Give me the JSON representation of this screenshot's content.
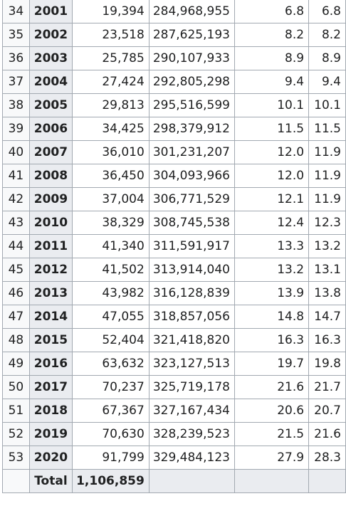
{
  "table": {
    "rows": [
      {
        "index": "34",
        "year": "2001",
        "deaths": "19,394",
        "population": "284,968,955",
        "rate": "6.8",
        "rate2": "6.8"
      },
      {
        "index": "35",
        "year": "2002",
        "deaths": "23,518",
        "population": "287,625,193",
        "rate": "8.2",
        "rate2": "8.2"
      },
      {
        "index": "36",
        "year": "2003",
        "deaths": "25,785",
        "population": "290,107,933",
        "rate": "8.9",
        "rate2": "8.9"
      },
      {
        "index": "37",
        "year": "2004",
        "deaths": "27,424",
        "population": "292,805,298",
        "rate": "9.4",
        "rate2": "9.4"
      },
      {
        "index": "38",
        "year": "2005",
        "deaths": "29,813",
        "population": "295,516,599",
        "rate": "10.1",
        "rate2": "10.1"
      },
      {
        "index": "39",
        "year": "2006",
        "deaths": "34,425",
        "population": "298,379,912",
        "rate": "11.5",
        "rate2": "11.5"
      },
      {
        "index": "40",
        "year": "2007",
        "deaths": "36,010",
        "population": "301,231,207",
        "rate": "12.0",
        "rate2": "11.9"
      },
      {
        "index": "41",
        "year": "2008",
        "deaths": "36,450",
        "population": "304,093,966",
        "rate": "12.0",
        "rate2": "11.9"
      },
      {
        "index": "42",
        "year": "2009",
        "deaths": "37,004",
        "population": "306,771,529",
        "rate": "12.1",
        "rate2": "11.9"
      },
      {
        "index": "43",
        "year": "2010",
        "deaths": "38,329",
        "population": "308,745,538",
        "rate": "12.4",
        "rate2": "12.3"
      },
      {
        "index": "44",
        "year": "2011",
        "deaths": "41,340",
        "population": "311,591,917",
        "rate": "13.3",
        "rate2": "13.2"
      },
      {
        "index": "45",
        "year": "2012",
        "deaths": "41,502",
        "population": "313,914,040",
        "rate": "13.2",
        "rate2": "13.1"
      },
      {
        "index": "46",
        "year": "2013",
        "deaths": "43,982",
        "population": "316,128,839",
        "rate": "13.9",
        "rate2": "13.8"
      },
      {
        "index": "47",
        "year": "2014",
        "deaths": "47,055",
        "population": "318,857,056",
        "rate": "14.8",
        "rate2": "14.7"
      },
      {
        "index": "48",
        "year": "2015",
        "deaths": "52,404",
        "population": "321,418,820",
        "rate": "16.3",
        "rate2": "16.3"
      },
      {
        "index": "49",
        "year": "2016",
        "deaths": "63,632",
        "population": "323,127,513",
        "rate": "19.7",
        "rate2": "19.8"
      },
      {
        "index": "50",
        "year": "2017",
        "deaths": "70,237",
        "population": "325,719,178",
        "rate": "21.6",
        "rate2": "21.7"
      },
      {
        "index": "51",
        "year": "2018",
        "deaths": "67,367",
        "population": "327,167,434",
        "rate": "20.6",
        "rate2": "20.7"
      },
      {
        "index": "52",
        "year": "2019",
        "deaths": "70,630",
        "population": "328,239,523",
        "rate": "21.5",
        "rate2": "21.6"
      },
      {
        "index": "53",
        "year": "2020",
        "deaths": "91,799",
        "population": "329,484,123",
        "rate": "27.9",
        "rate2": "28.3"
      }
    ],
    "total": {
      "label": "Total",
      "deaths": "1,106,859"
    }
  }
}
